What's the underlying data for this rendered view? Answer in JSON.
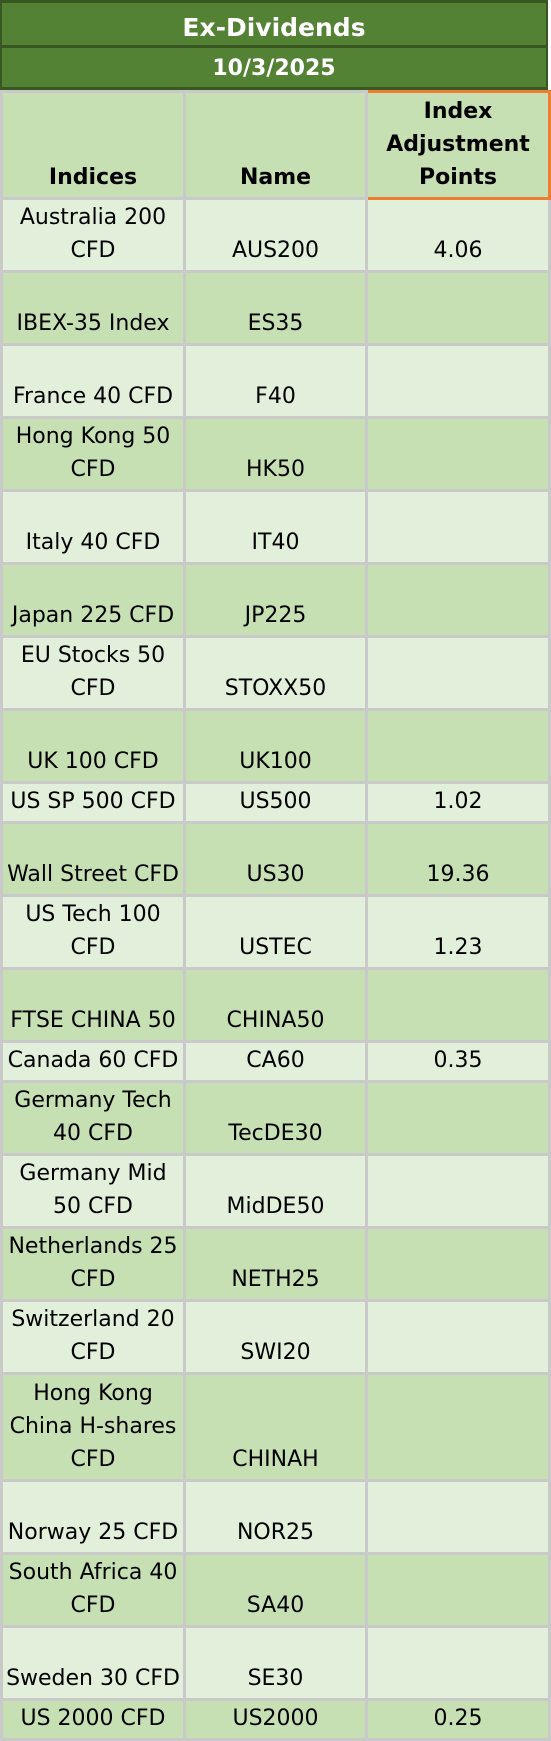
{
  "title": "Ex-Dividends",
  "date": "10/3/2025",
  "columns": {
    "indices": "Indices",
    "name": "Name",
    "adjustment": "Index Adjustment Points"
  },
  "rows": [
    {
      "index": "Australia 200 CFD",
      "name": "AUS200",
      "points": "4.06",
      "tone": "light",
      "h": "r2"
    },
    {
      "index": "IBEX-35 Index",
      "name": "ES35",
      "points": "",
      "tone": "dark",
      "h": "r2"
    },
    {
      "index": "France 40 CFD",
      "name": "F40",
      "points": "",
      "tone": "light",
      "h": "r2"
    },
    {
      "index": "Hong Kong 50 CFD",
      "name": "HK50",
      "points": "",
      "tone": "dark",
      "h": "r2"
    },
    {
      "index": "Italy 40 CFD",
      "name": "IT40",
      "points": "",
      "tone": "light",
      "h": "r2"
    },
    {
      "index": "Japan 225 CFD",
      "name": "JP225",
      "points": "",
      "tone": "dark",
      "h": "r2"
    },
    {
      "index": "EU Stocks 50 CFD",
      "name": "STOXX50",
      "points": "",
      "tone": "light",
      "h": "r2"
    },
    {
      "index": "UK 100 CFD",
      "name": "UK100",
      "points": "",
      "tone": "dark",
      "h": "r2"
    },
    {
      "index": "US SP 500 CFD",
      "name": "US500",
      "points": "1.02",
      "tone": "light",
      "h": "r1"
    },
    {
      "index": "Wall Street CFD",
      "name": "US30",
      "points": "19.36",
      "tone": "dark",
      "h": "r2"
    },
    {
      "index": "US Tech 100 CFD",
      "name": "USTEC",
      "points": "1.23",
      "tone": "light",
      "h": "r2"
    },
    {
      "index": "FTSE CHINA 50",
      "name": "CHINA50",
      "points": "",
      "tone": "dark",
      "h": "r2"
    },
    {
      "index": "Canada 60 CFD",
      "name": "CA60",
      "points": "0.35",
      "tone": "light",
      "h": "r1"
    },
    {
      "index": "Germany Tech 40 CFD",
      "name": "TecDE30",
      "points": "",
      "tone": "dark",
      "h": "r2"
    },
    {
      "index": "Germany Mid 50 CFD",
      "name": "MidDE50",
      "points": "",
      "tone": "light",
      "h": "r2"
    },
    {
      "index": "Netherlands 25 CFD",
      "name": "NETH25",
      "points": "",
      "tone": "dark",
      "h": "r2"
    },
    {
      "index": "Switzerland 20 CFD",
      "name": "SWI20",
      "points": "",
      "tone": "light",
      "h": "r2"
    },
    {
      "index": "Hong Kong China H-shares CFD",
      "name": "CHINAH",
      "points": "",
      "tone": "dark",
      "h": "r3"
    },
    {
      "index": "Norway 25 CFD",
      "name": "NOR25",
      "points": "",
      "tone": "light",
      "h": "r2"
    },
    {
      "index": "South Africa 40 CFD",
      "name": "SA40",
      "points": "",
      "tone": "dark",
      "h": "r2"
    },
    {
      "index": "Sweden 30 CFD",
      "name": "SE30",
      "points": "",
      "tone": "light",
      "h": "r2"
    },
    {
      "index": "US 2000 CFD",
      "name": "US2000",
      "points": "0.25",
      "tone": "dark",
      "h": "r1"
    }
  ]
}
